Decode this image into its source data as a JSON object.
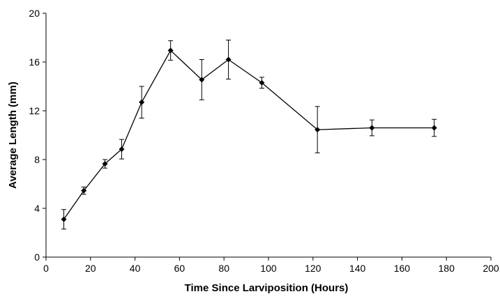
{
  "chart_data": {
    "type": "line",
    "xlabel": "Time Since Larviposition (Hours)",
    "ylabel": "Average Length (mm)",
    "xlim": [
      0,
      200
    ],
    "ylim": [
      0,
      20
    ],
    "x_ticks": [
      0,
      20,
      40,
      60,
      80,
      100,
      120,
      140,
      160,
      180,
      200
    ],
    "y_ticks": [
      0,
      4,
      8,
      12,
      16,
      20
    ],
    "grid": false,
    "legend": "none",
    "marker": "diamond",
    "color": "#000000",
    "series": [
      {
        "x": [
          8,
          17,
          26.5,
          34,
          43,
          56,
          70,
          82,
          97,
          122,
          146.5,
          174.5
        ],
        "y": [
          3.1,
          5.45,
          7.65,
          8.85,
          12.7,
          16.95,
          14.55,
          16.2,
          14.3,
          10.45,
          10.6,
          10.6
        ],
        "error": [
          0.8,
          0.3,
          0.35,
          0.8,
          1.3,
          0.8,
          1.65,
          1.6,
          0.45,
          1.9,
          0.65,
          0.7
        ]
      }
    ]
  }
}
